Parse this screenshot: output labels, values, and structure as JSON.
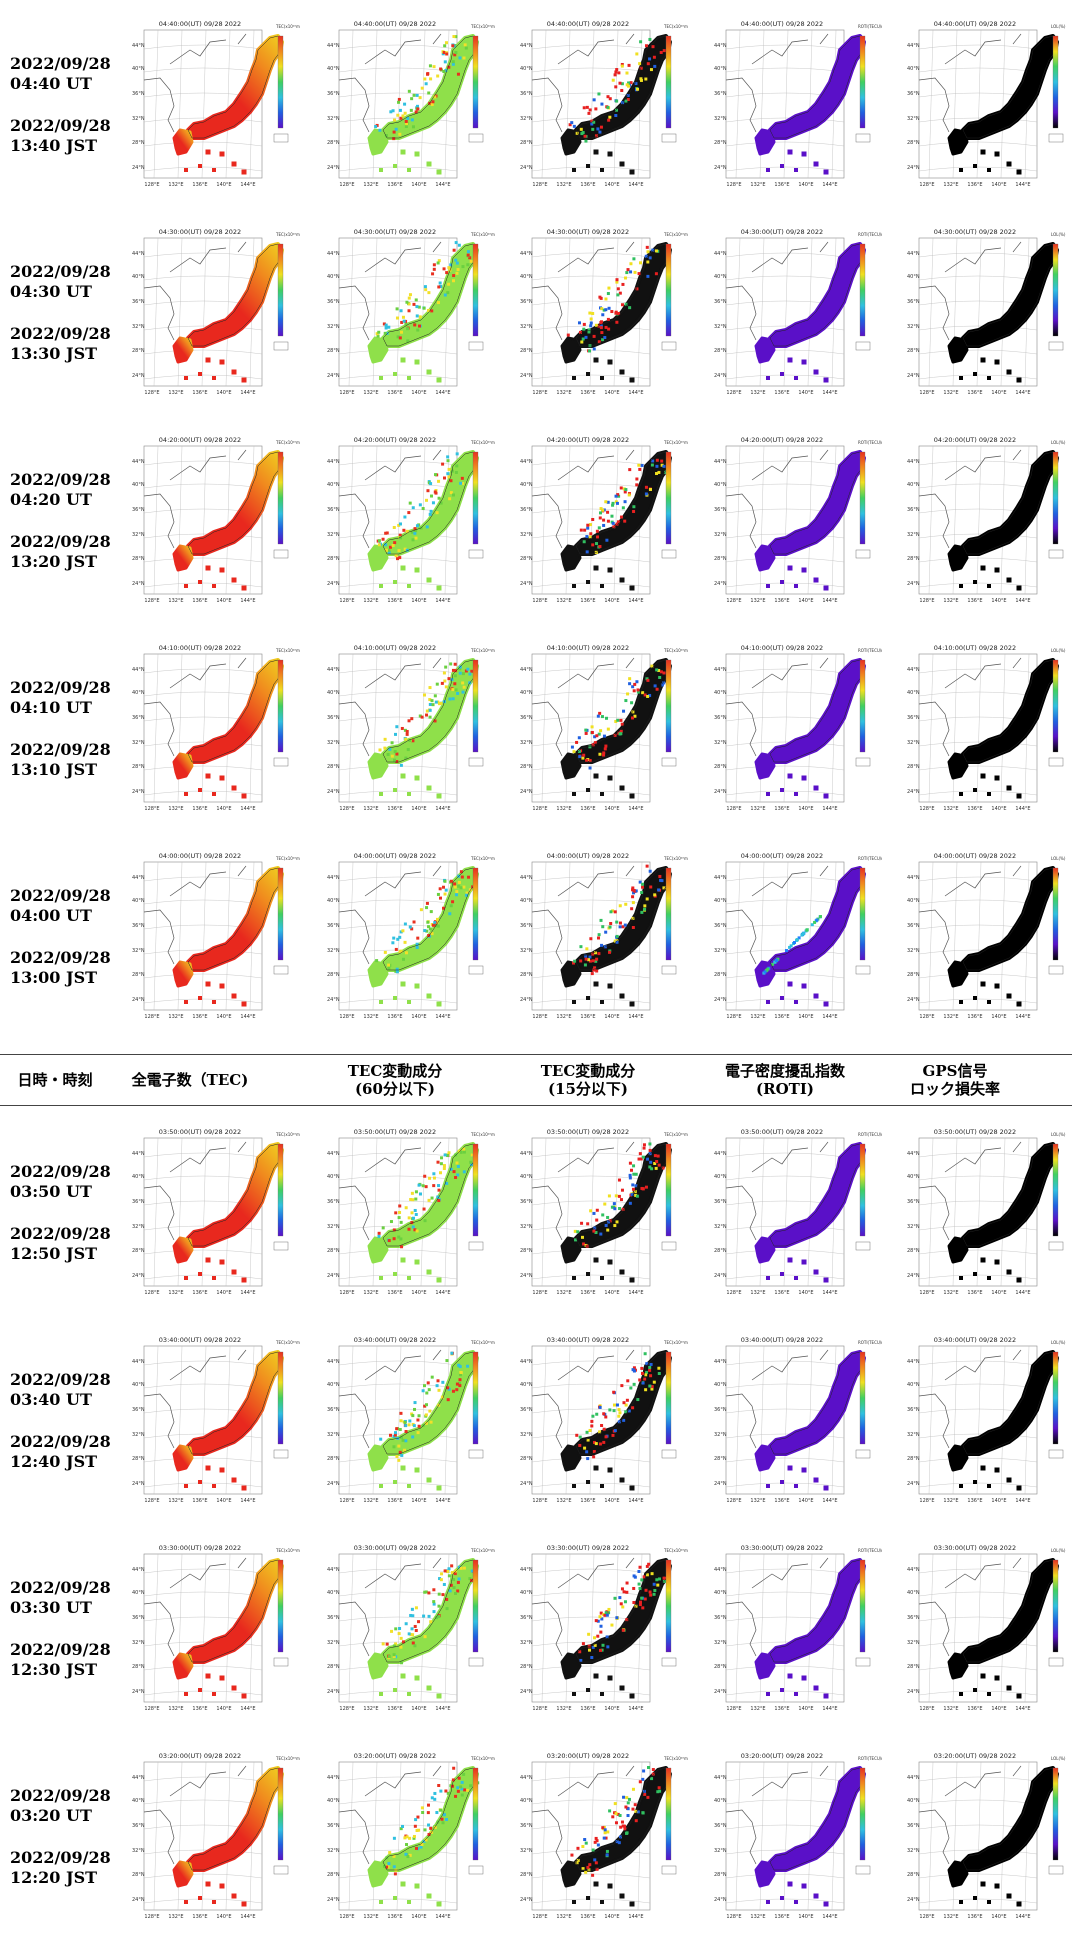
{
  "headers": {
    "datetime": "日時・時刻",
    "tec": "全電子数（TEC)",
    "tec60": "TEC変動成分\n(60分以下)",
    "tec15": "TEC変動成分\n(15分以下)",
    "roti": "電子密度擾乱指数\n(ROTI)",
    "gps": "GPS信号\nロック損失率"
  },
  "map": {
    "lat_ticks": [
      "44°N",
      "40°N",
      "36°N",
      "32°N",
      "28°N",
      "24°N"
    ],
    "lon_ticks": [
      "128°E",
      "132°E",
      "136°E",
      "140°E",
      "144°E"
    ]
  },
  "colorbar_units": {
    "tec": "TEC(x10¹⁶m⁻²)",
    "tec60": "TEC(x10¹⁶m⁻²)",
    "tec15": "TEC(x10¹⁶m⁻²)",
    "roti": "ROTI(TECU/min)",
    "gps": "LOL(%)"
  },
  "colors": {
    "tec_fill": "#e8281e",
    "tec_north": "#f0d020",
    "tec60_fill": "#8fe04a",
    "tec15_fill": "#111111",
    "roti_fill": "#5a10c8",
    "gps_fill": "#000000"
  },
  "rows": [
    {
      "ut_date": "2022/09/28",
      "ut_time": "04:40 UT",
      "jst_date": "2022/09/28",
      "jst_time": "13:40 JST",
      "map_title": "04:40:00(UT) 09/28 2022"
    },
    {
      "ut_date": "2022/09/28",
      "ut_time": "04:30 UT",
      "jst_date": "2022/09/28",
      "jst_time": "13:30 JST",
      "map_title": "04:30:00(UT) 09/28 2022"
    },
    {
      "ut_date": "2022/09/28",
      "ut_time": "04:20 UT",
      "jst_date": "2022/09/28",
      "jst_time": "13:20 JST",
      "map_title": "04:20:00(UT) 09/28 2022"
    },
    {
      "ut_date": "2022/09/28",
      "ut_time": "04:10 UT",
      "jst_date": "2022/09/28",
      "jst_time": "13:10 JST",
      "map_title": "04:10:00(UT) 09/28 2022"
    },
    {
      "ut_date": "2022/09/28",
      "ut_time": "04:00 UT",
      "jst_date": "2022/09/28",
      "jst_time": "13:00 JST",
      "map_title": "04:00:00(UT) 09/28 2022"
    },
    {
      "ut_date": "2022/09/28",
      "ut_time": "03:50 UT",
      "jst_date": "2022/09/28",
      "jst_time": "12:50 JST",
      "map_title": "03:50:00(UT) 09/28 2022"
    },
    {
      "ut_date": "2022/09/28",
      "ut_time": "03:40 UT",
      "jst_date": "2022/09/28",
      "jst_time": "12:40 JST",
      "map_title": "03:40:00(UT) 09/28 2022"
    },
    {
      "ut_date": "2022/09/28",
      "ut_time": "03:30 UT",
      "jst_date": "2022/09/28",
      "jst_time": "12:30 JST",
      "map_title": "03:30:00(UT) 09/28 2022"
    },
    {
      "ut_date": "2022/09/28",
      "ut_time": "03:20 UT",
      "jst_date": "2022/09/28",
      "jst_time": "12:20 JST",
      "map_title": "03:20:00(UT) 09/28 2022"
    }
  ]
}
